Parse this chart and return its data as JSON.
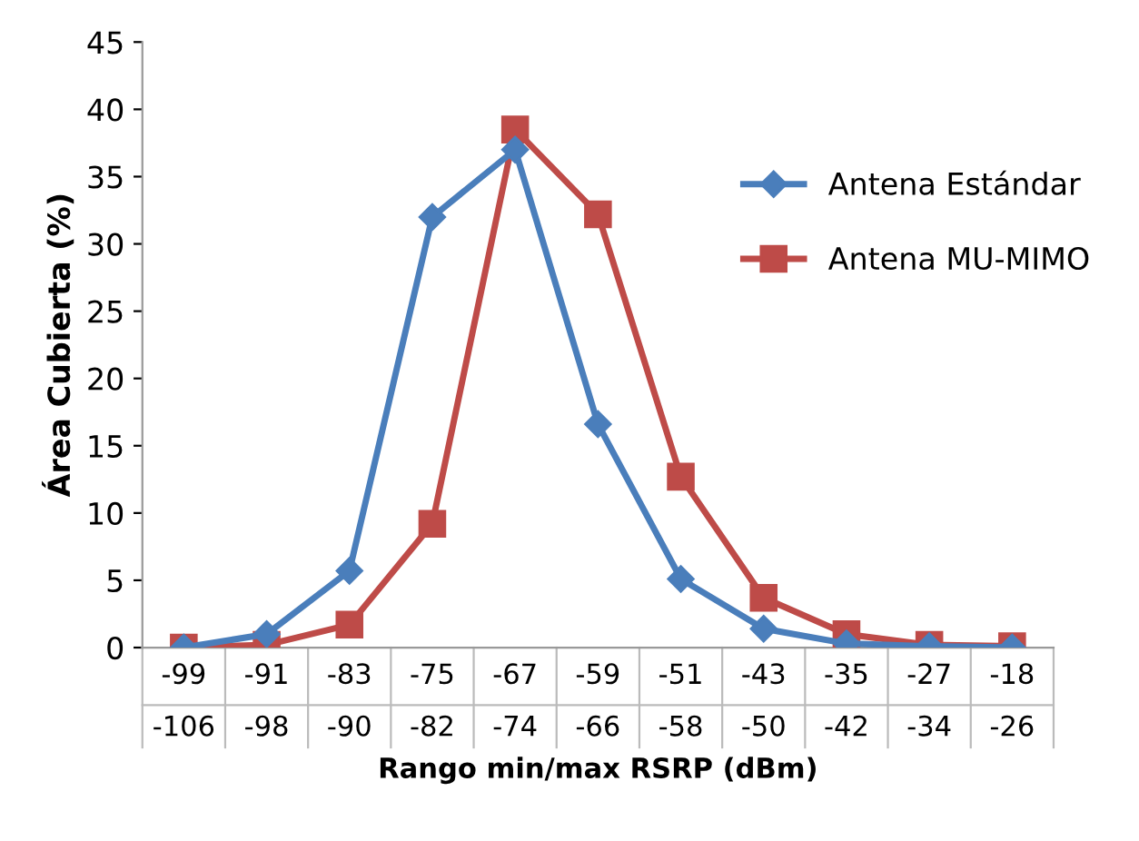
{
  "chart_data": {
    "type": "line",
    "xlabel": "Rango min/max RSRP (dBm)",
    "ylabel": "Área Cubierta (%)",
    "categories": [
      "-99\n-106",
      "-91\n-98",
      "-83\n-90",
      "-75\n-82",
      "-67\n-74",
      "-59\n-66",
      "-51\n-58",
      "-43\n-50",
      "-35\n-42",
      "-27\n-34",
      "-18\n-26"
    ],
    "series": [
      {
        "name": "Antena Estándar",
        "color": "#4a7ebb",
        "marker": "diamond",
        "values": [
          0,
          1,
          5.7,
          32,
          37,
          16.6,
          5.1,
          1.4,
          0.3,
          0.1,
          0
        ]
      },
      {
        "name": "Antena MU-MIMO",
        "color": "#be4b48",
        "marker": "square",
        "values": [
          0,
          0.2,
          1.7,
          9.2,
          38.5,
          32.2,
          12.7,
          3.7,
          1,
          0.2,
          0.1
        ]
      }
    ],
    "ylim": [
      0,
      45
    ],
    "yticks": [
      0,
      5,
      10,
      15,
      20,
      25,
      30,
      35,
      40,
      45
    ],
    "grid": false,
    "legend": "right"
  }
}
